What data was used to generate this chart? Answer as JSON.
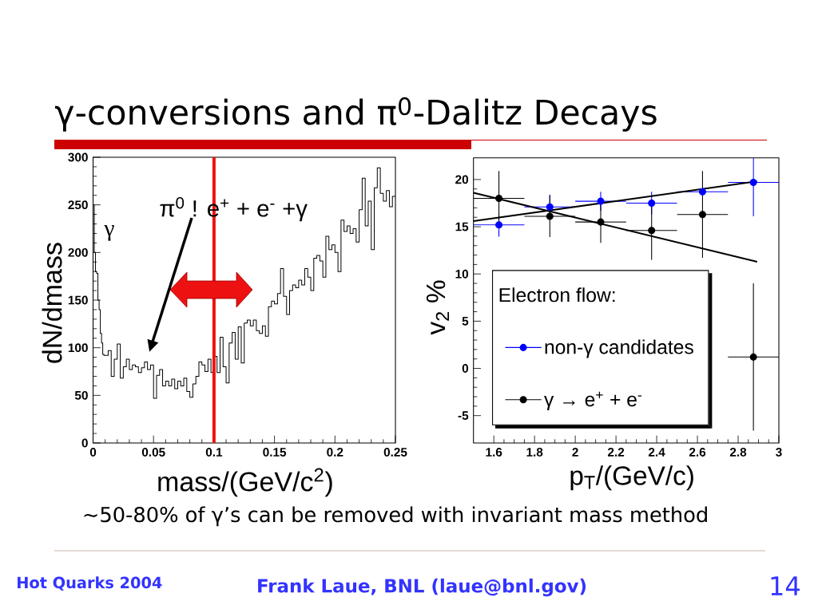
{
  "chart_data": [
    {
      "type": "histogram",
      "title": "γ-conversions and π$^{0}$-Dalitz Decays",
      "xlabel": "mass/(GeV/c$^{2}$)",
      "ylabel": "dN/dmass",
      "color": "#000000",
      "bins": [
        0,
        0.001,
        0.002,
        0.003,
        0.004,
        0.005,
        0.006,
        0.007,
        0.008,
        0.009,
        0.01,
        0.0125,
        0.015,
        0.0175,
        0.02,
        0.0225,
        0.025,
        0.0275,
        0.03,
        0.0325,
        0.035,
        0.0375,
        0.04,
        0.0425,
        0.045,
        0.0475,
        0.05,
        0.0525,
        0.055,
        0.0575,
        0.06,
        0.0625,
        0.065,
        0.0675,
        0.07,
        0.0725,
        0.075,
        0.0775,
        0.08,
        0.0825,
        0.085,
        0.0875,
        0.09,
        0.0925,
        0.095,
        0.0975,
        0.1,
        0.1025,
        0.105,
        0.1075,
        0.11,
        0.1125,
        0.115,
        0.1175,
        0.12,
        0.1225,
        0.125,
        0.1275,
        0.13,
        0.1325,
        0.135,
        0.1375,
        0.14,
        0.1425,
        0.145,
        0.1475,
        0.15,
        0.1525,
        0.155,
        0.1575,
        0.16,
        0.1625,
        0.165,
        0.1675,
        0.17,
        0.1725,
        0.175,
        0.1775,
        0.18,
        0.1825,
        0.185,
        0.1875,
        0.19,
        0.1925,
        0.195,
        0.1975,
        0.2,
        0.2025,
        0.205,
        0.2075,
        0.21,
        0.2125,
        0.215,
        0.2175,
        0.22,
        0.2225,
        0.225,
        0.2275,
        0.23,
        0.2325,
        0.235,
        0.2375,
        0.24,
        0.2425,
        0.245,
        0.2475,
        0.25
      ],
      "values": [
        250,
        200,
        180,
        178,
        150,
        140,
        115,
        105,
        93,
        92,
        92,
        97,
        70,
        88,
        104,
        68,
        80,
        88,
        77,
        82,
        80,
        74,
        79,
        85,
        77,
        82,
        47,
        71,
        77,
        60,
        65,
        60,
        67,
        57,
        65,
        60,
        68,
        54,
        48,
        62,
        70,
        85,
        82,
        75,
        88,
        74,
        91,
        74,
        111,
        80,
        63,
        105,
        116,
        88,
        122,
        84,
        126,
        129,
        123,
        129,
        118,
        115,
        123,
        112,
        143,
        149,
        146,
        157,
        183,
        154,
        135,
        160,
        166,
        163,
        171,
        166,
        183,
        174,
        160,
        194,
        197,
        191,
        174,
        217,
        203,
        208,
        200,
        180,
        234,
        222,
        228,
        220,
        225,
        211,
        245,
        278,
        228,
        254,
        203,
        268,
        289,
        262,
        254,
        265,
        248,
        259
      ],
      "xlim": [
        0,
        0.25
      ],
      "ylim": [
        0,
        300
      ],
      "xticks": [
        0,
        0.05,
        0.1,
        0.15,
        0.2,
        0.25
      ],
      "yticks": [
        0,
        50,
        100,
        150,
        200,
        250,
        300
      ],
      "ref_lines": [
        {
          "axis": "x",
          "value": 0.1,
          "color": "#ee1111"
        }
      ],
      "annotations": [
        "π$^{0}$ ! e$^{+}$ + e$^{-}$ +γ",
        "γ",
        "~50-80% of γ’s can be removed with invariant mass method",
        "Hot Quarks 2004",
        "Frank Laue, BNL (laue@bnl.gov)",
        "14"
      ]
    },
    {
      "type": "scatter",
      "xlabel": "p$_{T}$/(GeV/c)",
      "ylabel": "v$_{2}$ %",
      "legend_title": "Electron flow:",
      "legend": "bottom left",
      "xlim": [
        1.5,
        3
      ],
      "ylim": [
        -7.9,
        22.3
      ],
      "xticks": [
        1.6,
        1.8,
        2,
        2.2,
        2.4,
        2.6,
        2.8,
        3
      ],
      "yticks": [
        -5,
        0,
        5,
        10,
        15,
        20
      ],
      "series": [
        {
          "name": "non-γ candidates",
          "color": "#0000ff",
          "marker": "circle",
          "x": [
            1.625,
            1.875,
            2.125,
            2.375,
            2.625,
            2.875
          ],
          "values": [
            15.2,
            17.1,
            17.7,
            17.5,
            18.7,
            19.7
          ],
          "errors": [
            1.25,
            1.3,
            1.0,
            1.2,
            null,
            [
              16.1,
              22.3
            ]
          ],
          "xerrors": [
            0.125,
            0.125,
            0.125,
            0.125,
            0.125,
            0.125
          ]
        },
        {
          "name": "γ → e$^{+}$ + e$^{-}$",
          "color": "#000000",
          "marker": "circle",
          "x": [
            1.625,
            1.875,
            2.125,
            2.375,
            2.625,
            2.875
          ],
          "values": [
            18.0,
            16.1,
            15.5,
            14.6,
            16.3,
            1.2
          ],
          "errors": [
            2.9,
            2.2,
            2.2,
            3.1,
            4.6,
            7.8
          ],
          "xerrors": [
            0.125,
            0.125,
            0.125,
            0.125,
            0.125,
            0.125
          ]
        },
        {
          "type": "line",
          "color": "#000000",
          "x": [
            1.5,
            2.89
          ],
          "values": [
            15.6,
            19.8
          ]
        },
        {
          "type": "line",
          "color": "#000000",
          "x": [
            1.5,
            2.89
          ],
          "values": [
            18.6,
            11.3
          ]
        }
      ]
    }
  ]
}
